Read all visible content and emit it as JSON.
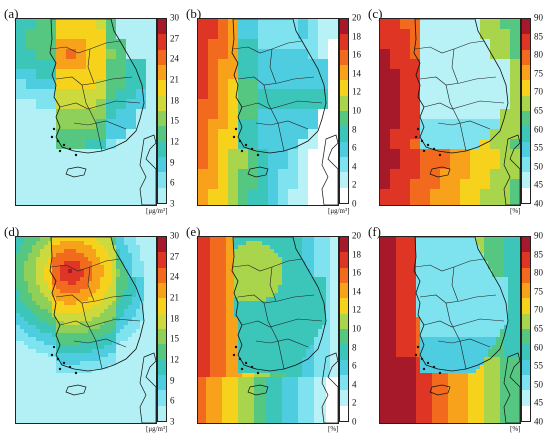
{
  "figure": {
    "panels": [
      {
        "label": "(a)",
        "unit": "[μg/m³]",
        "ticks": [
          "30",
          "27",
          "24",
          "21",
          "18",
          "15",
          "12",
          "9",
          "6",
          "3"
        ],
        "scale": "pm",
        "pattern": "conc_land"
      },
      {
        "label": "(b)",
        "unit": "[μg/m³]",
        "ticks": [
          "20",
          "18",
          "16",
          "14",
          "12",
          "10",
          "8",
          "6",
          "4",
          "2",
          "0"
        ],
        "scale": "diff",
        "pattern": "diff_ocean"
      },
      {
        "label": "(c)",
        "unit": "[%]",
        "ticks": [
          "90",
          "85",
          "80",
          "75",
          "70",
          "65",
          "60",
          "55",
          "50",
          "45",
          "40"
        ],
        "scale": "pct",
        "pattern": "pct_coarse"
      },
      {
        "label": "(d)",
        "unit": "[μg/m³]",
        "ticks": [
          "30",
          "27",
          "24",
          "21",
          "18",
          "15",
          "12",
          "9",
          "6",
          "3"
        ],
        "scale": "pm",
        "pattern": "conc_smooth"
      },
      {
        "label": "(e)",
        "unit": "[%]",
        "ticks": [
          "20",
          "18",
          "16",
          "14",
          "12",
          "10",
          "8",
          "6",
          "4",
          "2",
          "0"
        ],
        "scale": "diff",
        "pattern": "diff_smooth"
      },
      {
        "label": "(f)",
        "unit": "[%]",
        "ticks": [
          "90",
          "85",
          "80",
          "75",
          "70",
          "65",
          "60",
          "55",
          "50",
          "45",
          "40"
        ],
        "scale": "pct",
        "pattern": "pct_smooth"
      }
    ],
    "colorscales": {
      "pm": [
        "#b2f0f5",
        "#7ee3ee",
        "#4fcde0",
        "#3cc6b9",
        "#56c781",
        "#8fd05a",
        "#ccda3d",
        "#f6d21c",
        "#f8a11b",
        "#f26a1d",
        "#de3525",
        "#a6192b"
      ],
      "diff": [
        "#ffffff",
        "#b8f1f6",
        "#7ee3ee",
        "#4fcde0",
        "#3cc6b9",
        "#56c781",
        "#a9d54c",
        "#f6d21c",
        "#f8a11b",
        "#f26a1d",
        "#de3525",
        "#a6192b"
      ],
      "pct": [
        "#ffffff",
        "#b8f1f6",
        "#7ee3ee",
        "#4fcde0",
        "#3cc6b9",
        "#56c781",
        "#a9d54c",
        "#f6d21c",
        "#f8a11b",
        "#f26a1d",
        "#de3525",
        "#a6192b"
      ]
    }
  }
}
